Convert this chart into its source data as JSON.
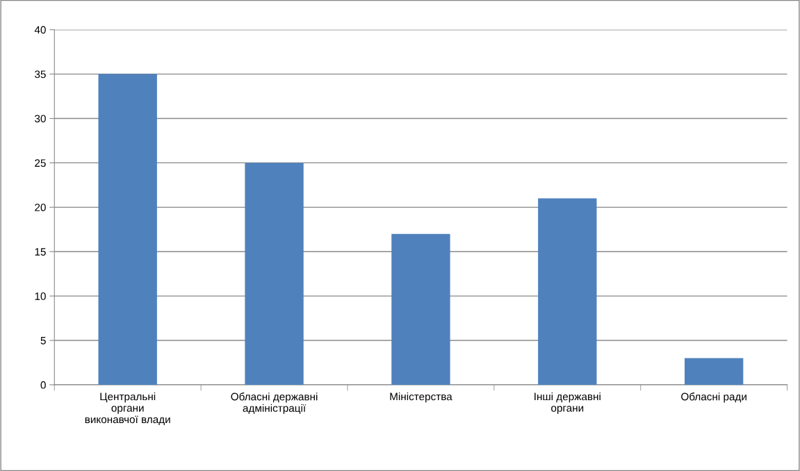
{
  "chart_data": {
    "type": "bar",
    "categories": [
      "Центральні\nоргани\nвиконавчої влади",
      "Обласні державні\nадміністрації",
      "Міністерства",
      "Інші державні\nоргани",
      "Обласні ради"
    ],
    "values": [
      35,
      25,
      17,
      21,
      3
    ],
    "color": "#4f81bd",
    "ylim": [
      0,
      40
    ],
    "yticks": [
      0,
      5,
      10,
      15,
      20,
      25,
      30,
      35,
      40
    ],
    "grid": "y",
    "legend": false
  }
}
